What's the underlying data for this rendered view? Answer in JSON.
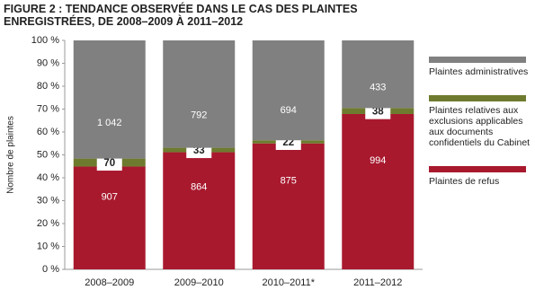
{
  "chart_data": {
    "type": "bar",
    "stacking": "percent",
    "title": "FIGURE 2 : TENDANCE OBSERVÉE DANS LE CAS DES PLAINTES ENREGISTRÉES, DE 2008–2009 À 2011–2012",
    "y_label": "Nombre de plaintes",
    "categories": [
      "2008–2009",
      "2009–2010",
      "2010–2011*",
      "2011–2012"
    ],
    "series": [
      {
        "name": "Plaintes de refus",
        "color": "#a8192e",
        "values": [
          907,
          864,
          875,
          994
        ]
      },
      {
        "name": "Plaintes relatives aux exclusions applicables aux documents confidentiels du Cabinet",
        "color": "#6e7b2f",
        "values": [
          70,
          33,
          22,
          38
        ]
      },
      {
        "name": "Plaintes administratives",
        "color": "#808080",
        "values": [
          1042,
          792,
          694,
          433
        ],
        "value_labels": [
          "1 042",
          "792",
          "694",
          "433"
        ]
      }
    ],
    "ylim": [
      0,
      100
    ],
    "yticks": [
      {
        "value": 0,
        "label": "0 %"
      },
      {
        "value": 10,
        "label": "10 %"
      },
      {
        "value": 20,
        "label": "20 %"
      },
      {
        "value": 30,
        "label": "30 %"
      },
      {
        "value": 40,
        "label": "40 %"
      },
      {
        "value": 50,
        "label": "50 %"
      },
      {
        "value": 60,
        "label": "60 %"
      },
      {
        "value": 70,
        "label": "70 %"
      },
      {
        "value": 80,
        "label": "80 %"
      },
      {
        "value": 90,
        "label": "90 %"
      },
      {
        "value": 100,
        "label": "100 %"
      }
    ],
    "grid": false,
    "legend": "right"
  }
}
